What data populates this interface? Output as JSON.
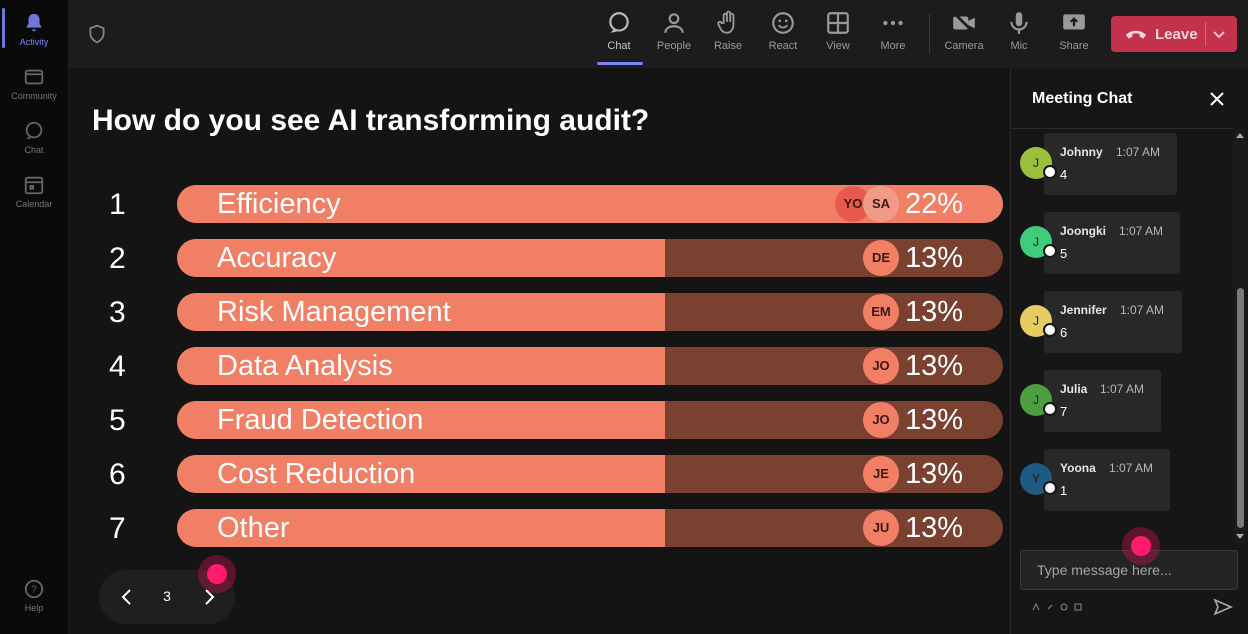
{
  "rail": {
    "items": [
      {
        "label": "Activity",
        "icon": "bell-icon"
      },
      {
        "label": "Community",
        "icon": "community-icon"
      },
      {
        "label": "Chat",
        "icon": "chat-icon"
      },
      {
        "label": "Calendar",
        "icon": "calendar-icon"
      },
      {
        "label": "Help",
        "icon": "help-icon"
      }
    ]
  },
  "toolbar": {
    "chat": "Chat",
    "people": "People",
    "raise": "Raise",
    "react": "React",
    "view": "View",
    "more": "More",
    "camera": "Camera",
    "mic": "Mic",
    "share": "Share",
    "leave": "Leave"
  },
  "poll": {
    "question": "How do you see AI transforming audit?",
    "page": "3"
  },
  "chart_data": {
    "type": "bar",
    "title": "How do you see AI transforming audit?",
    "categories": [
      "Efficiency",
      "Accuracy",
      "Risk Management",
      "Data Analysis",
      "Fraud Detection",
      "Cost Reduction",
      "Other"
    ],
    "numbers": [
      "1",
      "2",
      "3",
      "4",
      "5",
      "6",
      "7"
    ],
    "values": [
      22,
      13,
      13,
      13,
      13,
      13,
      13
    ],
    "value_labels": [
      "22%",
      "13%",
      "13%",
      "13%",
      "13%",
      "13%",
      "13%"
    ],
    "avatars": [
      [
        "YO",
        "SA"
      ],
      [
        "DE"
      ],
      [
        "EM"
      ],
      [
        "JO"
      ],
      [
        "JO"
      ],
      [
        "JE"
      ],
      [
        "JU"
      ]
    ]
  },
  "chat": {
    "title": "Meeting Chat",
    "input_placeholder": "Type message here...",
    "messages": [
      {
        "initial": "J",
        "name": "Johnny",
        "time": "1:07 AM",
        "text": "4",
        "color": "#9bc13b"
      },
      {
        "initial": "J",
        "name": "Joongki",
        "time": "1:07 AM",
        "text": "5",
        "color": "#3fcc7c"
      },
      {
        "initial": "J",
        "name": "Jennifer",
        "time": "1:07 AM",
        "text": "6",
        "color": "#e6cd62"
      },
      {
        "initial": "J",
        "name": "Julia",
        "time": "1:07 AM",
        "text": "7",
        "color": "#4c9e3f"
      },
      {
        "initial": "Y",
        "name": "Yoona",
        "time": "1:07 AM",
        "text": "1",
        "color": "#1e5a82"
      }
    ]
  },
  "colors": {
    "bar_fill": "#f07f65",
    "bar_track": "#7a4030",
    "leave": "#c4314b",
    "accent": "#7f85f5"
  }
}
